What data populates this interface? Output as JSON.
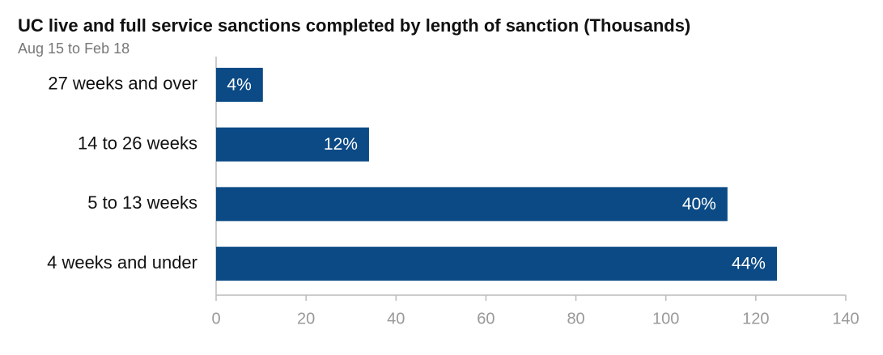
{
  "chart_data": {
    "type": "bar",
    "orientation": "horizontal",
    "title": "UC live and full service sanctions completed by length of sanction (Thousands)",
    "subtitle": "Aug 15 to Feb 18",
    "categories": [
      "27 weeks and over",
      "14 to 26 weeks",
      "5 to 13 weeks",
      "4 weeks and under"
    ],
    "values": [
      10.4,
      34,
      113.7,
      124.7
    ],
    "share_labels": [
      "4%",
      "12%",
      "40%",
      "44%"
    ],
    "color": "#0b4a85",
    "xlim": [
      0,
      140
    ],
    "xticks": [
      0,
      20,
      40,
      60,
      80,
      100,
      120,
      140
    ],
    "grid": false
  }
}
